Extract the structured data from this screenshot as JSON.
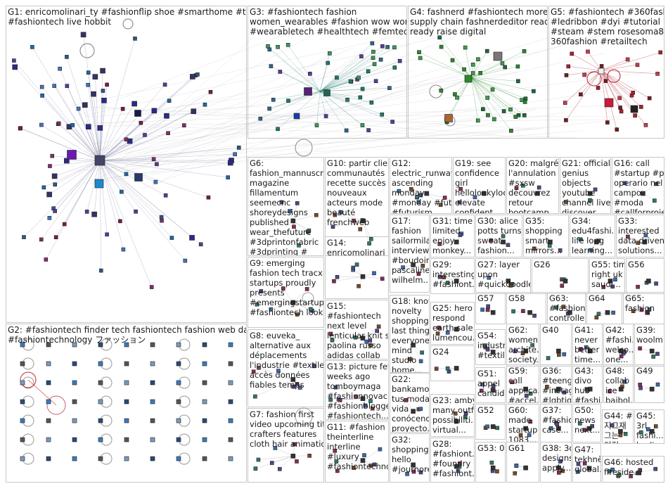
{
  "groups": [
    {
      "id": "G1",
      "text": "G1: enricomolinari_ty #fashionflip shoe #smarthome #traveltech\n#fashiontech live hobbit"
    },
    {
      "id": "G2",
      "text": "G2: #fashiontech finder tech fashiontech fashion web daily best\n#fashiontechnology ファッション"
    },
    {
      "id": "G3",
      "text": "G3: #fashiontech fashion\nwomen_wearables #fashion wow woman\n#wearabletech #healthtech #femtech #iot"
    },
    {
      "id": "G4",
      "text": "G4: fashnerd #fashiontech more\nsupply chain fashnerdeditor read\nready raise digital"
    },
    {
      "id": "G5",
      "text": "G5: #fashiontech #360fash\n#ledribbon #dyi #tutorial\n#steam #stem rosesoma88\n360fashion #retailtech"
    },
    {
      "id": "G6",
      "text": "G6:\nfashion_mannuscri...\nmagazine\nfillamentum\nseemecnc\nshoreydesigns\npublished\nwear_thefuture\n#3dprintonfabric\n#3dprinting #"
    },
    {
      "id": "G10",
      "text": "G10: partir client\ncommunautés\nrecette succès\nnouveaux\nacteurs mode\nbeauté\nfrenchweb"
    },
    {
      "id": "G12",
      "text": "G12:\nelectric_runway\nascending\nmonday\n#monday #future\n#futurism..."
    },
    {
      "id": "G19",
      "text": "G19: see\nconfidence\ngirl\nhellolookyloo\nelevate\nconfident..."
    },
    {
      "id": "G20",
      "text": "G20: malgré\nl'annulation\n#sxsw\ndécouvrez\nretour\nbootcamp..."
    },
    {
      "id": "G21",
      "text": "G21: official\ngenius\nobjects\nyoutube\nchannel live\ndiscover..."
    },
    {
      "id": "G16",
      "text": "G16: call\n#startup #pmi\noperario nel\ncampo\n#moda\n#callforproje..."
    },
    {
      "id": "G17",
      "text": "G17:\nfashion\nsailormila\ninterview\n#boudoir...\npascaline\nwilhelm..."
    },
    {
      "id": "G31",
      "text": "G31: time\nlimited\nenjoy\nmonkey..."
    },
    {
      "id": "G30",
      "text": "G30: alice\npotts turns\nsweat\nfashion..."
    },
    {
      "id": "G35",
      "text": "G35:\nshopping\nsmart\nmirrors..."
    },
    {
      "id": "G34",
      "text": "G34:\nedu4fashi...\nlife long\nlearning..."
    },
    {
      "id": "G33",
      "text": "G33:\ninterested\ndata driven\nsolutions..."
    },
    {
      "id": "G14",
      "text": "G14:\nenricomolinari"
    },
    {
      "id": "G9",
      "text": "G9: emerging\nfashion tech tracxn\nstartups proudly\npresents\n#emergingstartups\n#fashiontech look"
    },
    {
      "id": "G29",
      "text": "G29:\ninteresting\n#fashiont..."
    },
    {
      "id": "G27",
      "text": "G27: layer\nupon\n#quickdoodle..."
    },
    {
      "id": "G26",
      "text": "G26"
    },
    {
      "id": "G55",
      "text": "G55: time\nright uk\nsaudi..."
    },
    {
      "id": "G56",
      "text": "G56"
    },
    {
      "id": "G15",
      "text": "G15:\n#fashiontech\nnext level\nlenticular knit set\npaolina russo\nadidas collab"
    },
    {
      "id": "G18",
      "text": "G18: know\nnovelty\nshopping\nlast thing\neveryone\nmind\nstudio\nhome..."
    },
    {
      "id": "G25",
      "text": "G25: hero\nrespond\nearth sale\nlumencou..."
    },
    {
      "id": "G57",
      "text": "G57"
    },
    {
      "id": "G58",
      "text": "G58"
    },
    {
      "id": "G63",
      "text": "G63:\n#fashion...\ncontrolle..."
    },
    {
      "id": "G64",
      "text": "G64"
    },
    {
      "id": "G65",
      "text": "G65:\nfashion"
    },
    {
      "id": "G8",
      "text": "G8: euveka_\nalternative aux\ndéplacements\nl'industrie #textile\naccès données\nfiables temps"
    },
    {
      "id": "G54",
      "text": "G54:\nindustrie\n#textile..."
    },
    {
      "id": "G62",
      "text": "G62:\nwomen\narchite...\nsociety..."
    },
    {
      "id": "G40",
      "text": "G40"
    },
    {
      "id": "G41",
      "text": "G41:\nnever\nbetter\ntime..."
    },
    {
      "id": "G42",
      "text": "G42:\n#fashi...\nwelco...\none..."
    },
    {
      "id": "G39",
      "text": "G39:\nwoolm..."
    },
    {
      "id": "G24",
      "text": "G24"
    },
    {
      "id": "G13",
      "text": "G13: picture few\nweeks ago\ntomboymaga\n#fashionnovac...\n#fashionblogger\n#fashiontech..."
    },
    {
      "id": "G22",
      "text": "G22:\nbankamo...\ntus moda\nvida\nconócenos\nproyecto..."
    },
    {
      "id": "G51",
      "text": "G51:\nappel\ncandid..."
    },
    {
      "id": "G59",
      "text": "G59:\ncall\napplica...\n#accel..."
    },
    {
      "id": "G36",
      "text": "G36:\n#teengi...\n#instag...\n#lgbtiq..."
    },
    {
      "id": "G43",
      "text": "G43:\ndivo\nhub\n#fashi..."
    },
    {
      "id": "G48",
      "text": "G48:\ncollab\nice\nbaibol..."
    },
    {
      "id": "G49",
      "text": "G49"
    },
    {
      "id": "G7",
      "text": "G7: fashion first\nvideo upcoming title\ncrafters features\ncloth hair animation"
    },
    {
      "id": "G23",
      "text": "G23: amby\nmany outfit\npossibiliti...\nvirtual..."
    },
    {
      "id": "G52",
      "text": "G52"
    },
    {
      "id": "G60",
      "text": "G60:\nmade\nstartup\n1083..."
    },
    {
      "id": "G37",
      "text": "G37:\n#fashio...\ncase..."
    },
    {
      "id": "G50",
      "text": "G50:\nnews\nnext..."
    },
    {
      "id": "G44",
      "text": "G44: #\n지그재\n그는\n여전..."
    },
    {
      "id": "G45",
      "text": "G45:\n3rl\nfashi...\nberlin..."
    },
    {
      "id": "G11",
      "text": "G11: #fashion\ntheinterline\ninterline\n#luxury\n#fashiontechno..."
    },
    {
      "id": "G32",
      "text": "G32:\nshopping\nhello\n#journore..."
    },
    {
      "id": "G28",
      "text": "G28:\n#fashiont...\n#foundry\n#fashiont..."
    },
    {
      "id": "G53",
      "text": "G53: 02"
    },
    {
      "id": "G61",
      "text": "G61"
    },
    {
      "id": "G38",
      "text": "G38: 3d\ndesigns\napply..."
    },
    {
      "id": "G47",
      "text": "G47:\ntekhnē\nglobal..."
    },
    {
      "id": "G46",
      "text": "G46: hosted\nfireside..."
    }
  ],
  "colors": {
    "box_border": "#c8c8c8",
    "g1": "#3b3bb0",
    "g3": "#1e7a6e",
    "g4": "#2a8a2a",
    "g5": "#b01e2e",
    "g2": "#3a7ac0",
    "edge": "#9a9aa8"
  }
}
